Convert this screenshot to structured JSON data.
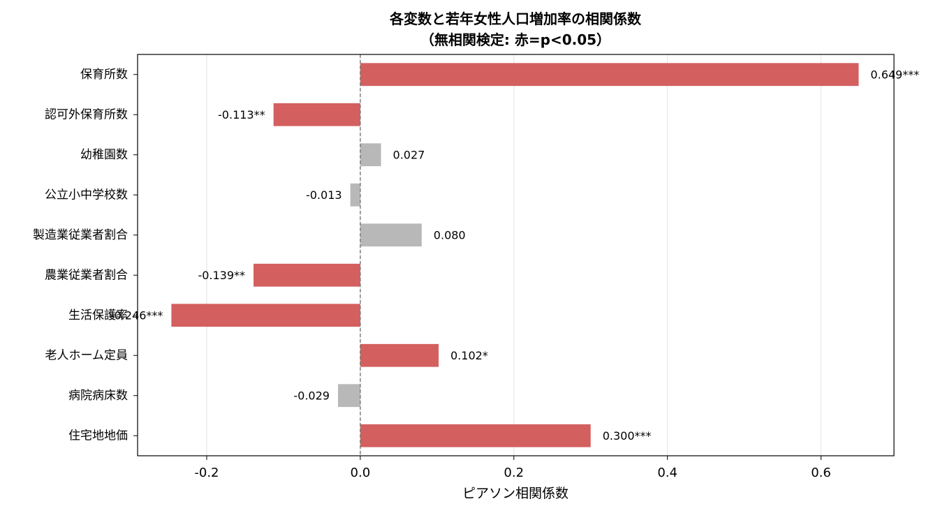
{
  "chart_data": {
    "type": "bar",
    "orientation": "horizontal",
    "title": "各変数と若年女性人口増加率の相関係数",
    "subtitle": "（無相関検定: 赤=p<0.05）",
    "xlabel": "ピアソン相関係数",
    "ylabel": "",
    "xlim": [
      -0.29,
      0.695
    ],
    "xticks": [
      -0.2,
      0.0,
      0.2,
      0.4,
      0.6
    ],
    "xtick_labels": [
      "-0.2",
      "0.0",
      "0.2",
      "0.4",
      "0.6"
    ],
    "grid": "vertical",
    "reference_line": 0.0,
    "categories": [
      "保育所数",
      "認可外保育所数",
      "幼稚園数",
      "公立小中学校数",
      "製造業従業者割合",
      "農業従業者割合",
      "生活保護率",
      "老人ホーム定員",
      "病院病床数",
      "住宅地地価"
    ],
    "values": [
      0.649,
      -0.113,
      0.027,
      -0.013,
      0.08,
      -0.139,
      -0.246,
      0.102,
      -0.029,
      0.3
    ],
    "labels": [
      "0.649***",
      "-0.113**",
      "0.027",
      "-0.013",
      "0.080",
      "-0.139**",
      "-0.246***",
      "0.102*",
      "-0.029",
      "0.300***"
    ],
    "significant": [
      true,
      true,
      false,
      false,
      false,
      true,
      true,
      true,
      false,
      true
    ],
    "colors": {
      "significant": "#d45f5f",
      "not_significant": "#b8b8b8"
    }
  }
}
